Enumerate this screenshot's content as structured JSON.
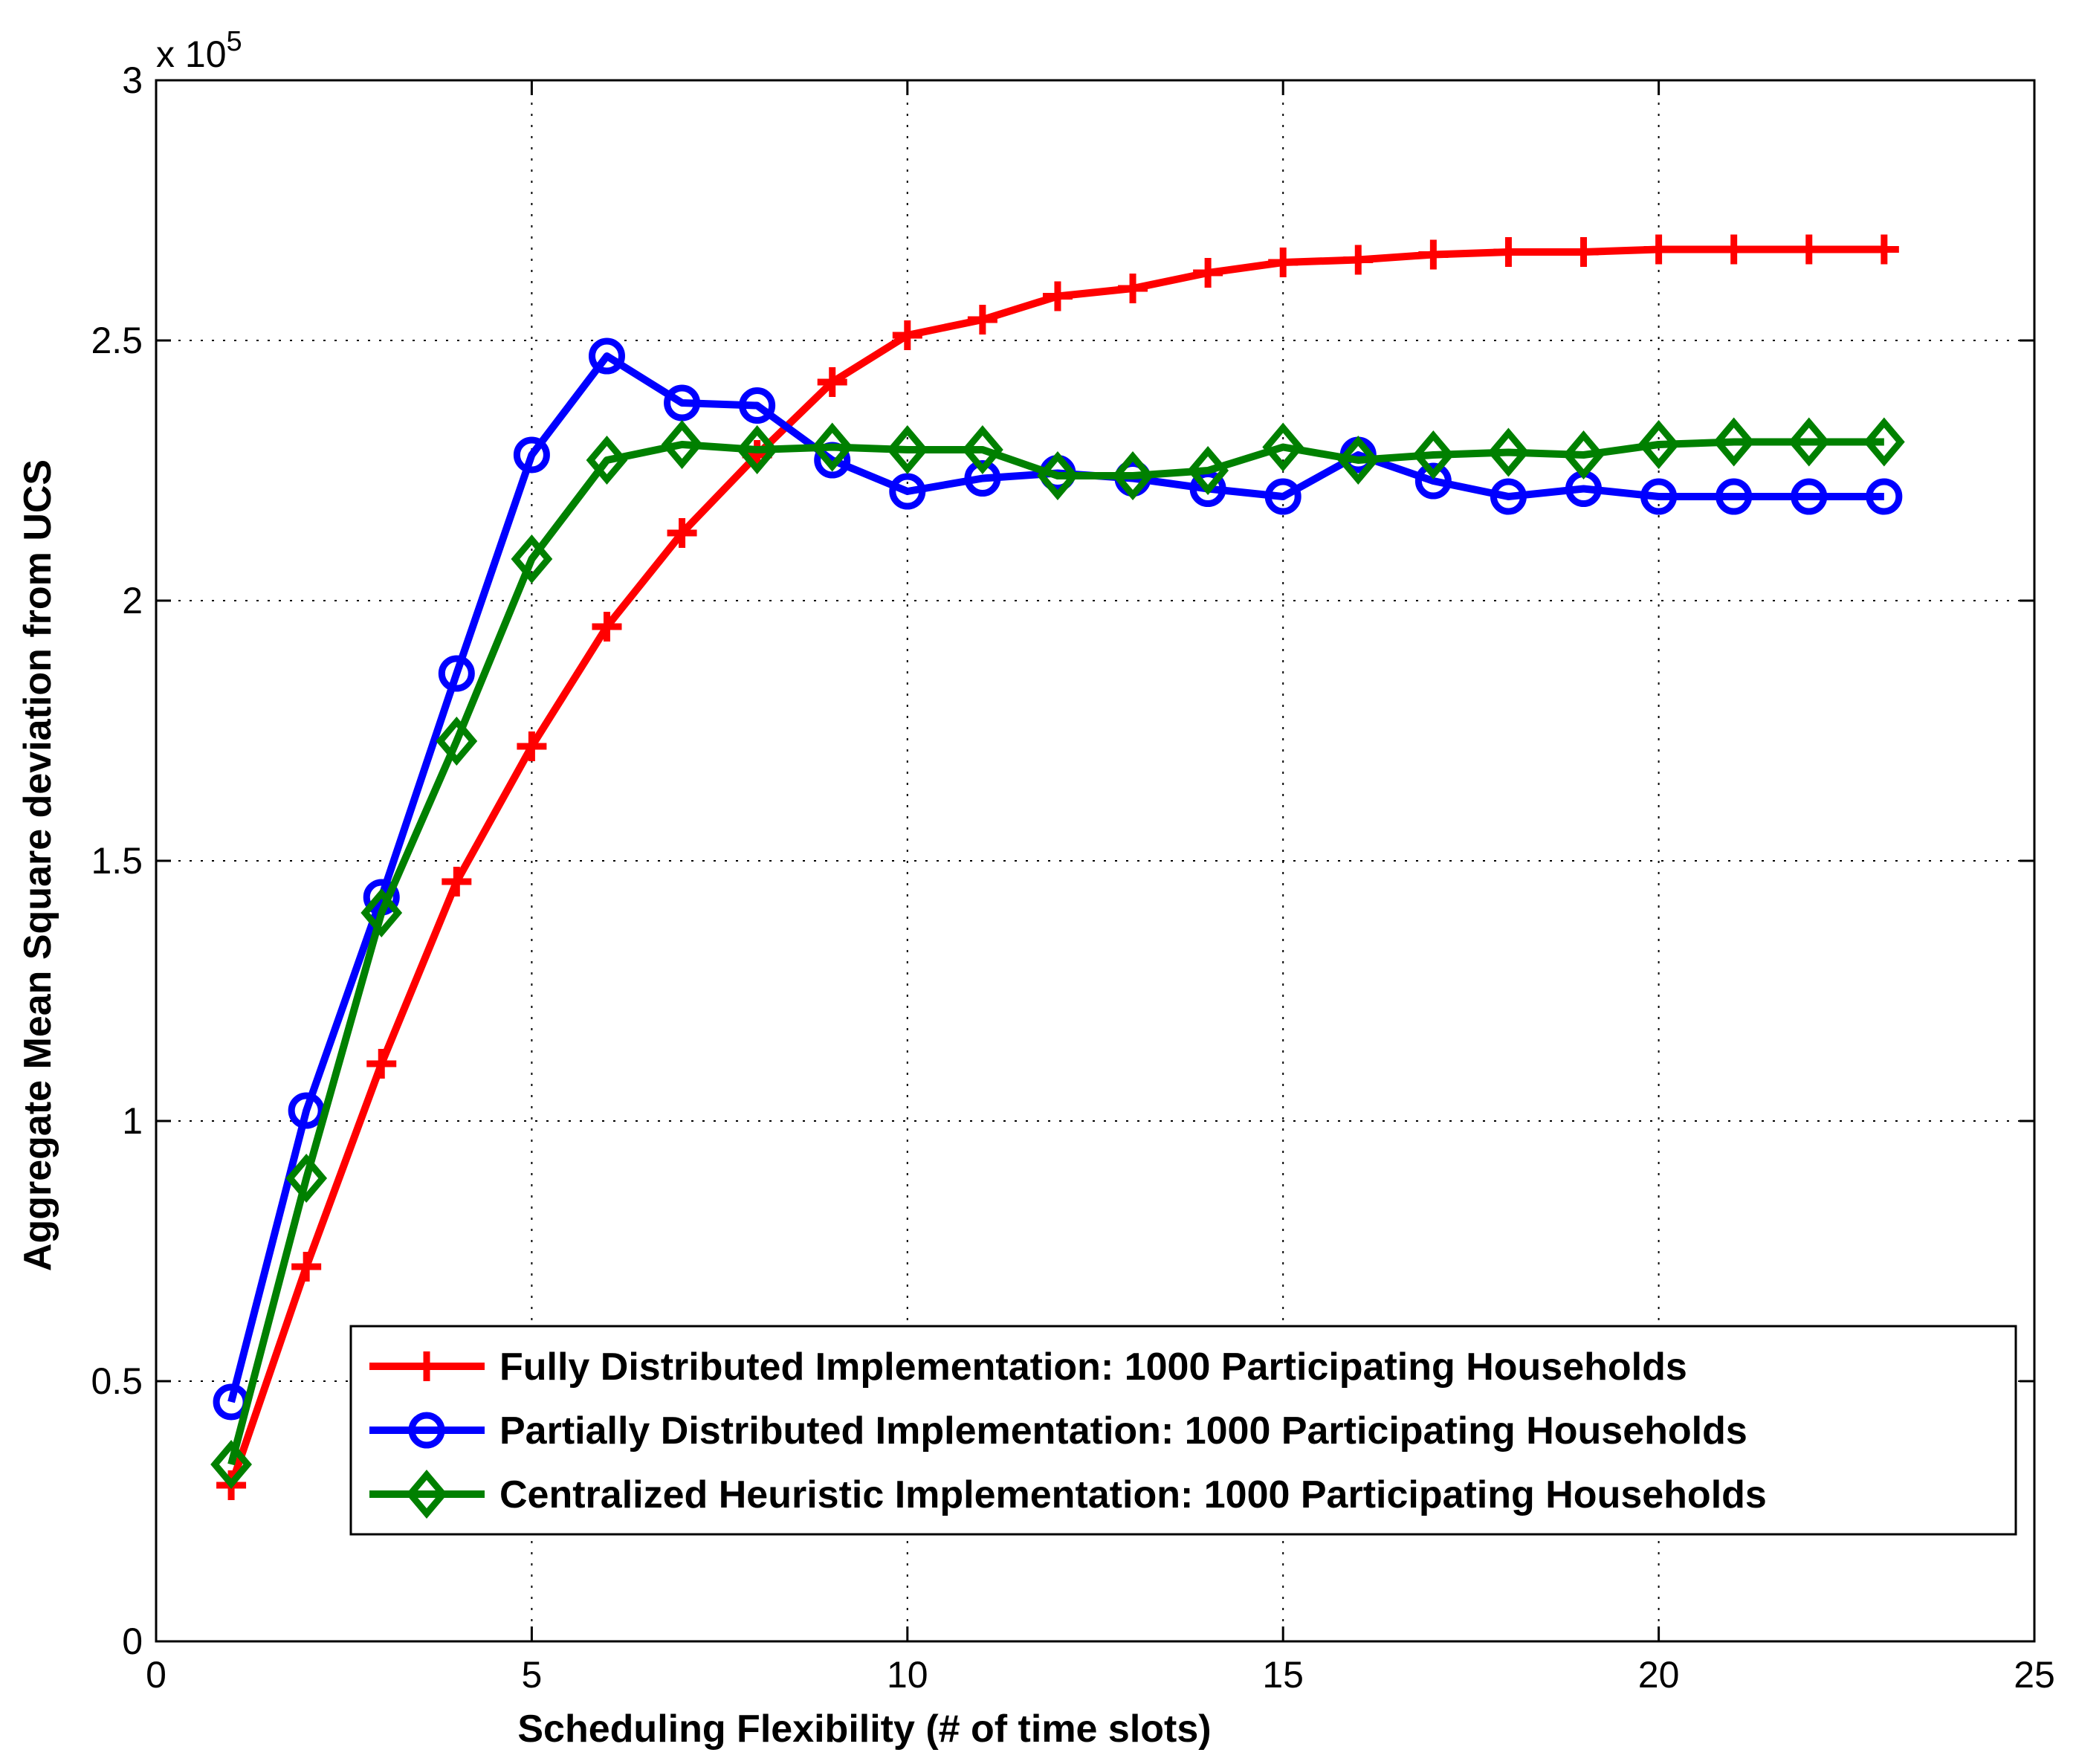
{
  "chart_data": {
    "type": "line",
    "title": "",
    "xlabel": "Scheduling Flexibility (# of time slots)",
    "ylabel": "Aggregate Mean Square deviation from UCS",
    "y_scale_label": "x 10",
    "y_scale_exponent": "5",
    "xlim": [
      0,
      25
    ],
    "ylim": [
      0,
      3
    ],
    "xticks": [
      0,
      5,
      10,
      15,
      20,
      25
    ],
    "yticks": [
      0,
      0.5,
      1,
      1.5,
      2,
      2.5,
      3
    ],
    "xtick_labels": [
      "0",
      "5",
      "10",
      "15",
      "20",
      "25"
    ],
    "ytick_labels": [
      "0",
      "0.5",
      "1",
      "1.5",
      "2",
      "2.5",
      "3"
    ],
    "grid": true,
    "legend_position": "bottom-right",
    "x": [
      1,
      2,
      3,
      4,
      5,
      6,
      7,
      8,
      9,
      10,
      11,
      12,
      13,
      14,
      15,
      16,
      17,
      18,
      19,
      20,
      21,
      22,
      23
    ],
    "series": [
      {
        "name": "Fully Distributed Implementation: 1000 Participating Households",
        "color": "#ff0000",
        "marker": "plus",
        "values": [
          0.3,
          0.72,
          1.11,
          1.46,
          1.72,
          1.95,
          2.13,
          2.28,
          2.42,
          2.51,
          2.54,
          2.585,
          2.6,
          2.63,
          2.65,
          2.655,
          2.665,
          2.67,
          2.67,
          2.675,
          2.675,
          2.675,
          2.675
        ]
      },
      {
        "name": "Partially Distributed Implementation: 1000 Participating Households",
        "color": "#0000ff",
        "marker": "circle",
        "values": [
          0.46,
          1.02,
          1.43,
          1.86,
          2.28,
          2.47,
          2.38,
          2.375,
          2.27,
          2.21,
          2.235,
          2.245,
          2.235,
          2.215,
          2.2,
          2.28,
          2.23,
          2.2,
          2.215,
          2.2,
          2.2,
          2.2,
          2.2
        ]
      },
      {
        "name": "Centralized Heuristic Implementation: 1000 Participating Households",
        "color": "#008000",
        "marker": "diamond",
        "values": [
          0.34,
          0.89,
          1.4,
          1.73,
          2.08,
          2.27,
          2.3,
          2.29,
          2.295,
          2.29,
          2.29,
          2.24,
          2.24,
          2.25,
          2.295,
          2.27,
          2.28,
          2.285,
          2.28,
          2.3,
          2.305,
          2.305,
          2.305
        ]
      }
    ]
  }
}
